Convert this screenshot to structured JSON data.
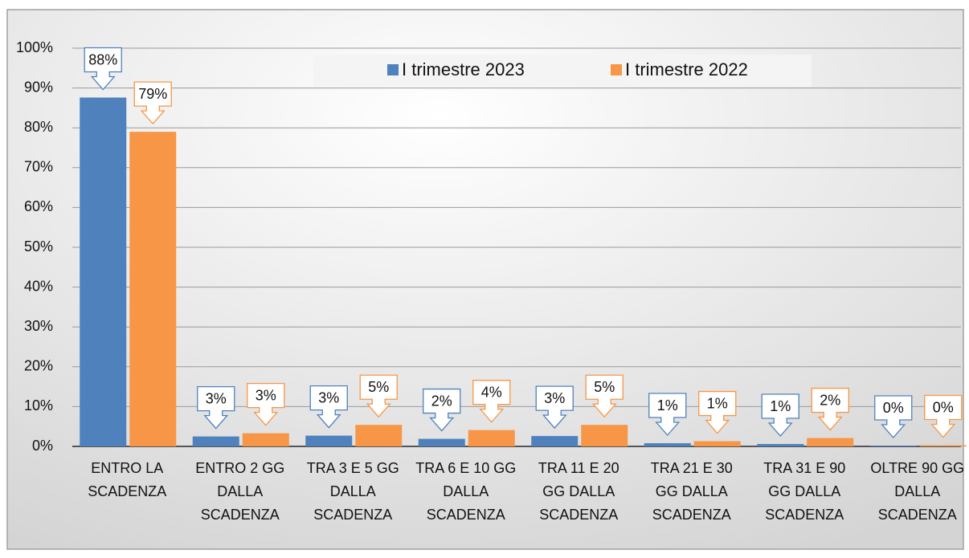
{
  "chart_data": {
    "type": "bar",
    "categories": [
      "ENTRO LA SCADENZA",
      "ENTRO 2 GG DALLA SCADENZA",
      "TRA 3 E 5 GG DALLA SCADENZA",
      "TRA 6 E 10 GG DALLA SCADENZA",
      "TRA 11 E 20 GG DALLA SCADENZA",
      "TRA 21 E 30 GG DALLA SCADENZA",
      "TRA 31 E 90 GG DALLA SCADENZA",
      "OLTRE 90 GG DALLA SCADENZA"
    ],
    "series": [
      {
        "name": "I trimestre 2023",
        "color": "#4f81bd",
        "values": [
          87.6,
          2.5,
          2.7,
          1.9,
          2.6,
          0.8,
          0.6,
          0.2
        ],
        "value_labels": [
          "88%",
          "3%",
          "3%",
          "2%",
          "3%",
          "1%",
          "1%",
          "0%"
        ]
      },
      {
        "name": "I trimestre 2022",
        "color": "#f79646",
        "values": [
          79,
          3.3,
          5.4,
          4.1,
          5.4,
          1.3,
          2.1,
          0.3
        ],
        "value_labels": [
          "79%",
          "3%",
          "5%",
          "4%",
          "5%",
          "1%",
          "2%",
          "0%"
        ]
      }
    ],
    "ylim": [
      0,
      100
    ],
    "yticks": [
      {
        "value": 0,
        "label": "0%"
      },
      {
        "value": 10,
        "label": "10%"
      },
      {
        "value": 20,
        "label": "20%"
      },
      {
        "value": 30,
        "label": "30%"
      },
      {
        "value": 40,
        "label": "40%"
      },
      {
        "value": 50,
        "label": "50%"
      },
      {
        "value": 60,
        "label": "60%"
      },
      {
        "value": 70,
        "label": "70%"
      },
      {
        "value": 80,
        "label": "80%"
      },
      {
        "value": 90,
        "label": "90%"
      },
      {
        "value": 100,
        "label": "100%"
      }
    ],
    "grid": true,
    "legend": "top"
  }
}
